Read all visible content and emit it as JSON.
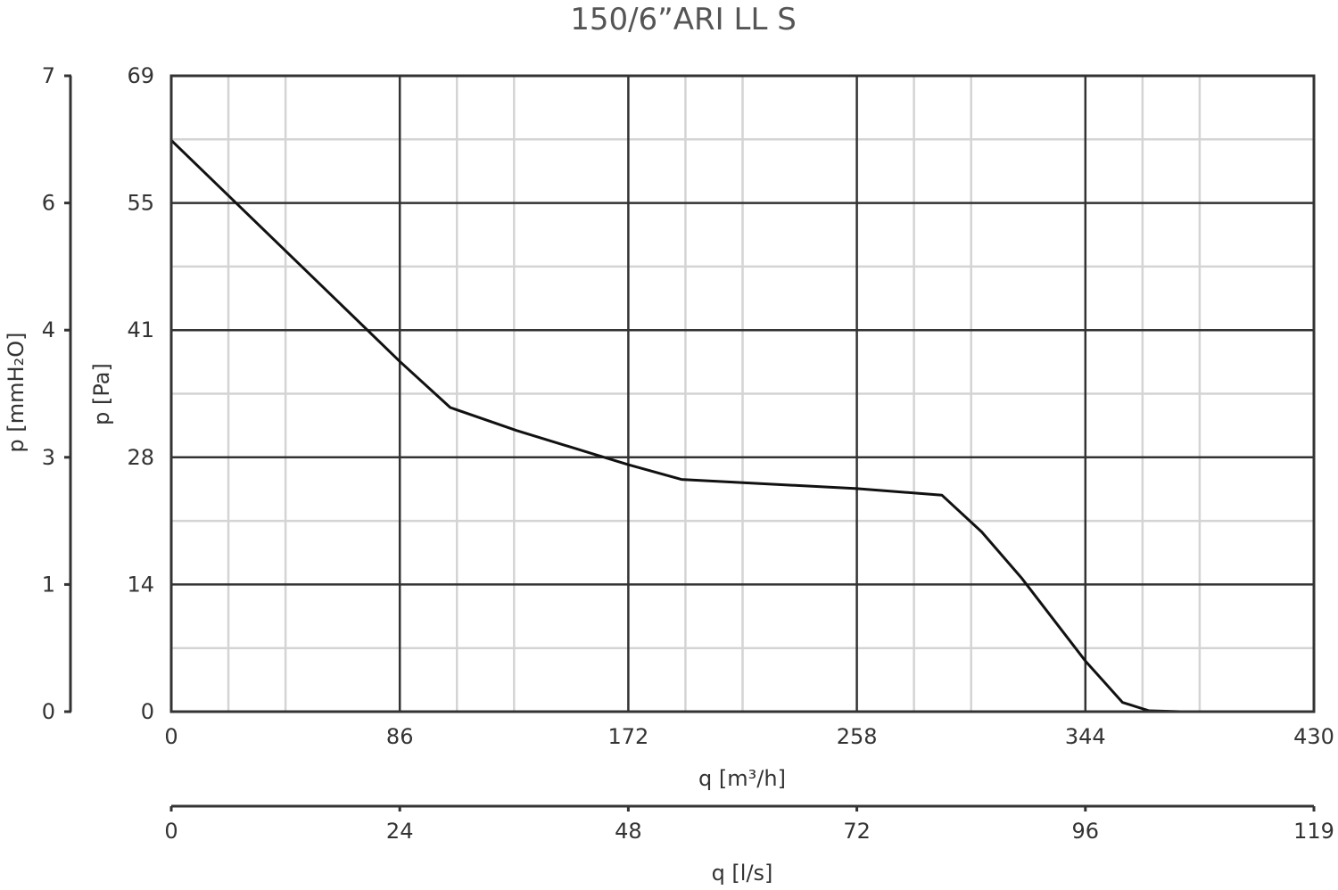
{
  "chart_data": {
    "type": "line",
    "title": "150/6”ARI LL S",
    "xlabel_m3h": "q [m³/h]",
    "xlabel_ls": "q [l/s]",
    "ylabel_pa": "p [Pa]",
    "ylabel_mmh2o": "p [mmH₂O]",
    "xlim": [
      0,
      430
    ],
    "ylim": [
      0,
      69
    ],
    "x_ticks_m3h": [
      "0",
      "86",
      "172",
      "258",
      "344",
      "430"
    ],
    "x_ticks_ls": [
      "0",
      "24",
      "48",
      "72",
      "96",
      "119"
    ],
    "y_ticks_pa": [
      "0",
      "14",
      "28",
      "41",
      "55",
      "69"
    ],
    "y_ticks_mmh2o": [
      "0",
      "1",
      "3",
      "4",
      "6",
      "7"
    ],
    "grid": true,
    "colors": {
      "curve": "#111111",
      "major_grid": "#333333",
      "minor_grid": "#d4d4d4"
    },
    "series": [
      {
        "points": [
          [
            0,
            62
          ],
          [
            86,
            38
          ],
          [
            105,
            33
          ],
          [
            130,
            30.5
          ],
          [
            172,
            26.8
          ],
          [
            192,
            25.2
          ],
          [
            258,
            24.2
          ],
          [
            290,
            23.5
          ],
          [
            305,
            19.5
          ],
          [
            320,
            14.5
          ],
          [
            344,
            5.5
          ],
          [
            358,
            1.0
          ],
          [
            368,
            0.1
          ],
          [
            380,
            0
          ]
        ]
      }
    ]
  }
}
